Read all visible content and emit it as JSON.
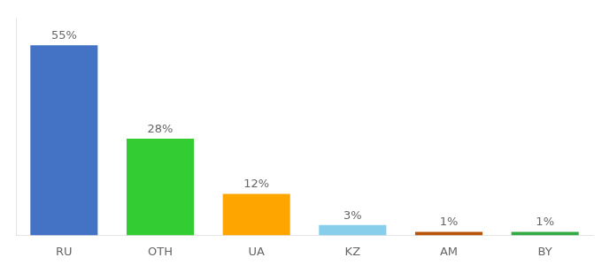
{
  "chart_data": {
    "type": "bar",
    "categories": [
      "RU",
      "OTH",
      "UA",
      "KZ",
      "AM",
      "BY"
    ],
    "values": [
      55,
      28,
      12,
      3,
      1,
      1
    ],
    "value_labels": [
      "55%",
      "28%",
      "12%",
      "3%",
      "1%",
      "1%"
    ],
    "colors": [
      "#4472C4",
      "#33CC33",
      "#FFA500",
      "#87CEEB",
      "#B8540A",
      "#33AA44"
    ],
    "data_labels": true,
    "ylim": [
      0,
      63
    ],
    "grid": false,
    "tick_labels": "x"
  }
}
